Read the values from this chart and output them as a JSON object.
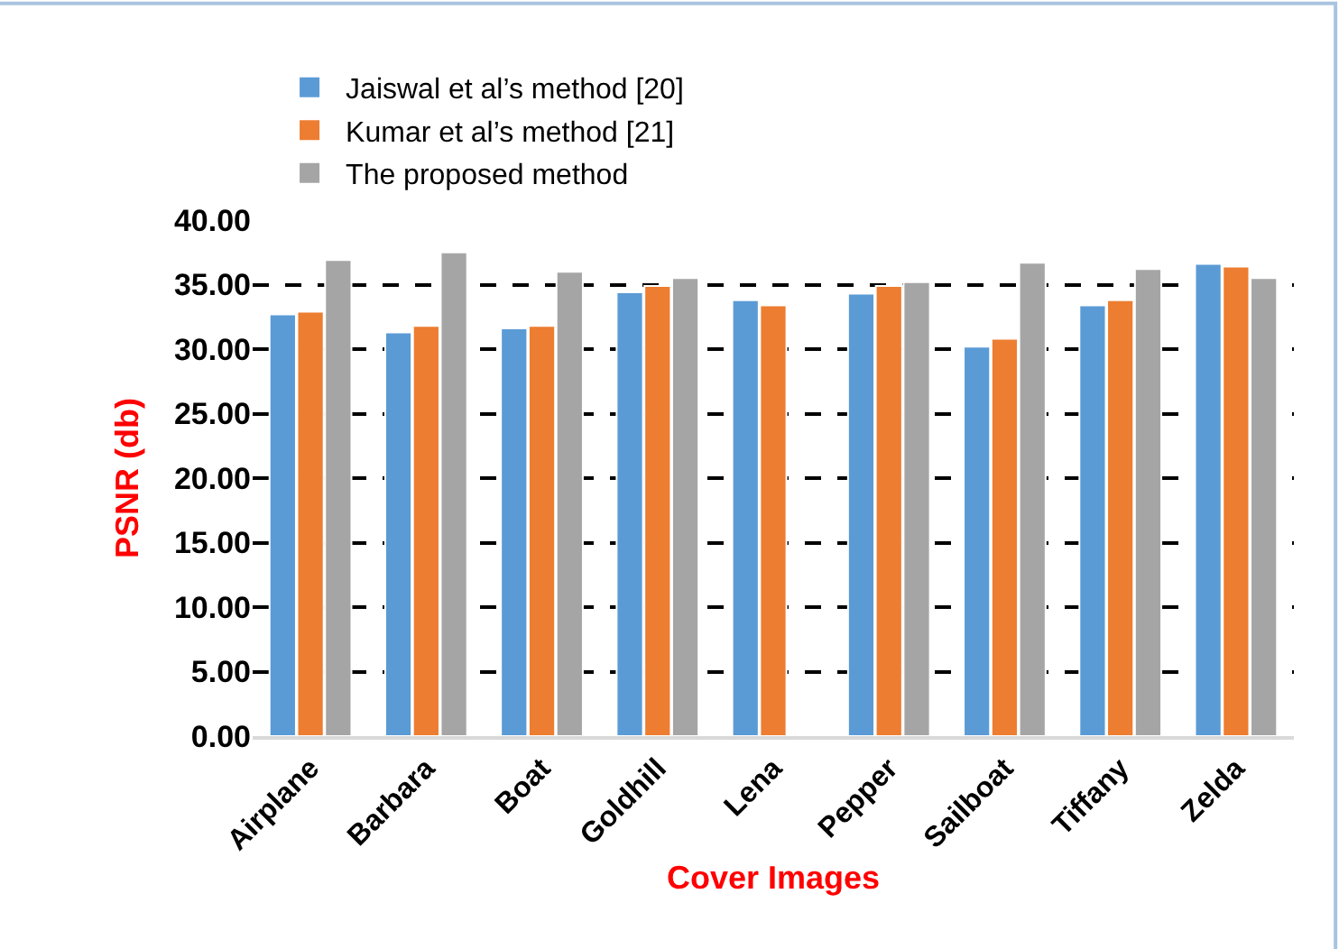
{
  "chart_data": {
    "type": "bar",
    "xlabel": "Cover Images",
    "ylabel": "PSNR (db)",
    "categories": [
      "Airplane",
      "Barbara",
      "Boat",
      "Goldhill",
      "Lena",
      "Pepper",
      "Sailboat",
      "Tiffany",
      "Zelda"
    ],
    "series": [
      {
        "name": "Jaiswal et al’s method [20]",
        "color": "#5b9bd5",
        "values": [
          32.7,
          31.3,
          31.6,
          34.4,
          33.8,
          34.3,
          30.2,
          33.4,
          36.6
        ]
      },
      {
        "name": "Kumar et al’s method [21]",
        "color": "#ed7d31",
        "values": [
          32.9,
          31.8,
          31.8,
          34.9,
          33.4,
          34.9,
          30.8,
          33.8,
          36.4
        ]
      },
      {
        "name": "The proposed method",
        "color": "#a5a5a5",
        "values": [
          36.9,
          37.5,
          36.0,
          35.5,
          null,
          35.2,
          36.7,
          36.2,
          35.5
        ]
      }
    ],
    "ylim": [
      0,
      40
    ],
    "yticks": [
      {
        "value": 0,
        "label": "0.00"
      },
      {
        "value": 5,
        "label": "5.00"
      },
      {
        "value": 10,
        "label": "10.00"
      },
      {
        "value": 15,
        "label": "15.00"
      },
      {
        "value": 20,
        "label": "20.00"
      },
      {
        "value": 25,
        "label": "25.00"
      },
      {
        "value": 30,
        "label": "30.00"
      },
      {
        "value": 35,
        "label": "35.00"
      },
      {
        "value": 40,
        "label": "40.00"
      }
    ],
    "grid": "y",
    "legend": "top"
  }
}
